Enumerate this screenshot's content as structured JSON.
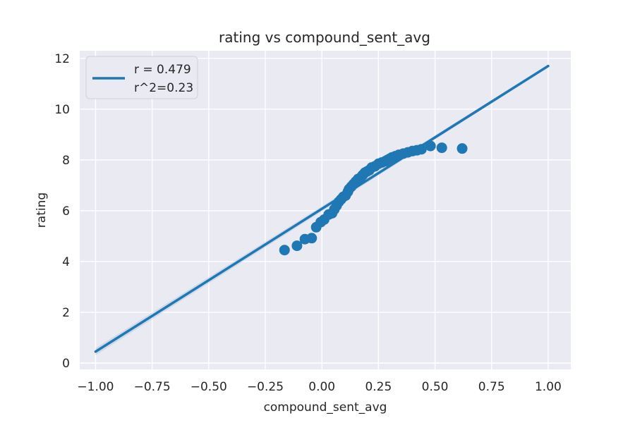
{
  "chart_data": {
    "type": "scatter",
    "title": "rating vs compound_sent_avg",
    "xlabel": "compound_sent_avg",
    "ylabel": "rating",
    "xlim": [
      -1.07,
      1.1
    ],
    "ylim": [
      -0.25,
      12.3
    ],
    "xticks": [
      -1.0,
      -0.75,
      -0.5,
      -0.25,
      0.0,
      0.25,
      0.5,
      0.75,
      1.0
    ],
    "xtick_labels": [
      "−1.00",
      "−0.75",
      "−0.50",
      "−0.25",
      "0.00",
      "0.25",
      "0.50",
      "0.75",
      "1.00"
    ],
    "yticks": [
      0,
      2,
      4,
      6,
      8,
      10,
      12
    ],
    "ytick_labels": [
      "0",
      "2",
      "4",
      "6",
      "8",
      "10",
      "12"
    ],
    "grid": true,
    "legend": {
      "placement": "top-left",
      "lines": [
        "r = 0.479",
        "r^2=0.23"
      ]
    },
    "series_color": "#1f77b4",
    "background_color": "#eaeaf2",
    "regression_line": {
      "x": [
        -1.0,
        1.0
      ],
      "y": [
        0.45,
        11.7
      ]
    },
    "points": [
      {
        "x": -0.165,
        "y": 4.45
      },
      {
        "x": -0.11,
        "y": 4.62
      },
      {
        "x": -0.075,
        "y": 4.88
      },
      {
        "x": -0.045,
        "y": 4.92
      },
      {
        "x": -0.025,
        "y": 5.35
      },
      {
        "x": -0.005,
        "y": 5.55
      },
      {
        "x": 0.01,
        "y": 5.65
      },
      {
        "x": 0.03,
        "y": 5.85
      },
      {
        "x": 0.045,
        "y": 5.9
      },
      {
        "x": 0.055,
        "y": 6.05
      },
      {
        "x": 0.065,
        "y": 6.2
      },
      {
        "x": 0.075,
        "y": 6.35
      },
      {
        "x": 0.085,
        "y": 6.45
      },
      {
        "x": 0.095,
        "y": 6.55
      },
      {
        "x": 0.105,
        "y": 6.6
      },
      {
        "x": 0.115,
        "y": 6.75
      },
      {
        "x": 0.12,
        "y": 6.85
      },
      {
        "x": 0.13,
        "y": 6.95
      },
      {
        "x": 0.14,
        "y": 7.05
      },
      {
        "x": 0.15,
        "y": 7.15
      },
      {
        "x": 0.16,
        "y": 7.25
      },
      {
        "x": 0.17,
        "y": 7.3
      },
      {
        "x": 0.18,
        "y": 7.4
      },
      {
        "x": 0.19,
        "y": 7.5
      },
      {
        "x": 0.2,
        "y": 7.55
      },
      {
        "x": 0.21,
        "y": 7.6
      },
      {
        "x": 0.22,
        "y": 7.7
      },
      {
        "x": 0.235,
        "y": 7.75
      },
      {
        "x": 0.25,
        "y": 7.85
      },
      {
        "x": 0.265,
        "y": 7.9
      },
      {
        "x": 0.28,
        "y": 7.95
      },
      {
        "x": 0.29,
        "y": 8.0
      },
      {
        "x": 0.3,
        "y": 8.05
      },
      {
        "x": 0.31,
        "y": 8.1
      },
      {
        "x": 0.325,
        "y": 8.15
      },
      {
        "x": 0.34,
        "y": 8.2
      },
      {
        "x": 0.36,
        "y": 8.25
      },
      {
        "x": 0.38,
        "y": 8.3
      },
      {
        "x": 0.4,
        "y": 8.35
      },
      {
        "x": 0.42,
        "y": 8.38
      },
      {
        "x": 0.44,
        "y": 8.42
      },
      {
        "x": 0.48,
        "y": 8.55
      },
      {
        "x": 0.53,
        "y": 8.48
      },
      {
        "x": 0.62,
        "y": 8.45
      }
    ]
  }
}
